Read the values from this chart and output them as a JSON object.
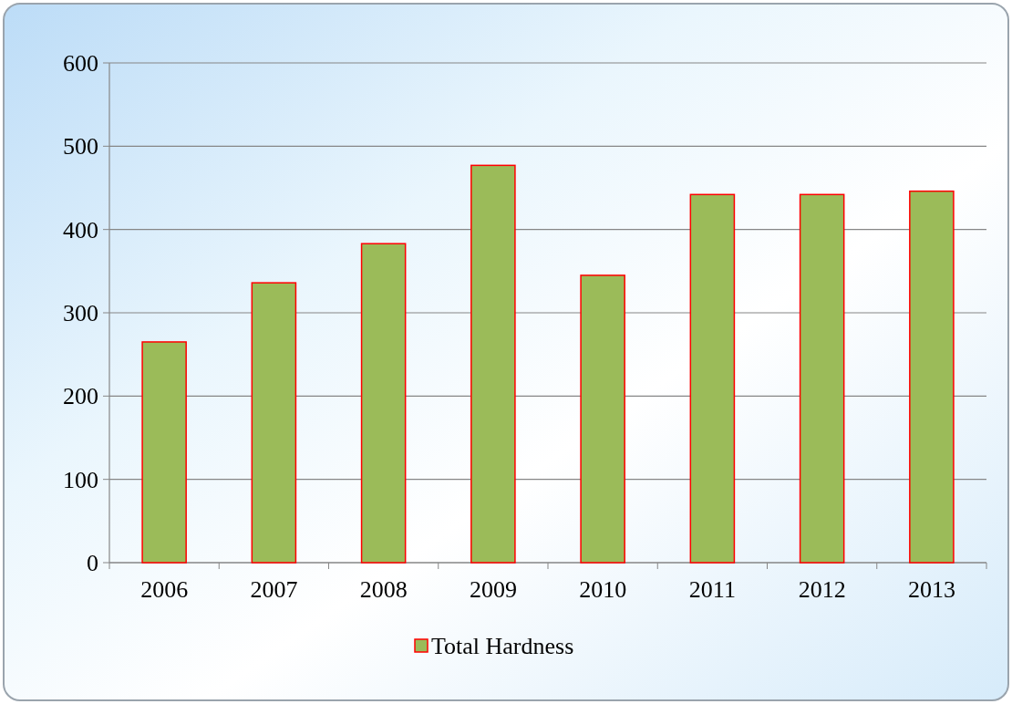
{
  "chart_data": {
    "type": "bar",
    "categories": [
      "2006",
      "2007",
      "2008",
      "2009",
      "2010",
      "2011",
      "2012",
      "2013"
    ],
    "series": [
      {
        "name": "Total Hardness",
        "color": "#9bbb59",
        "values": [
          265,
          336,
          383,
          477,
          345,
          442,
          442,
          446
        ]
      }
    ],
    "ylim": [
      0,
      600
    ],
    "yticks": [
      0,
      100,
      200,
      300,
      400,
      500,
      600
    ],
    "grid": "y",
    "legend": "bottom"
  }
}
